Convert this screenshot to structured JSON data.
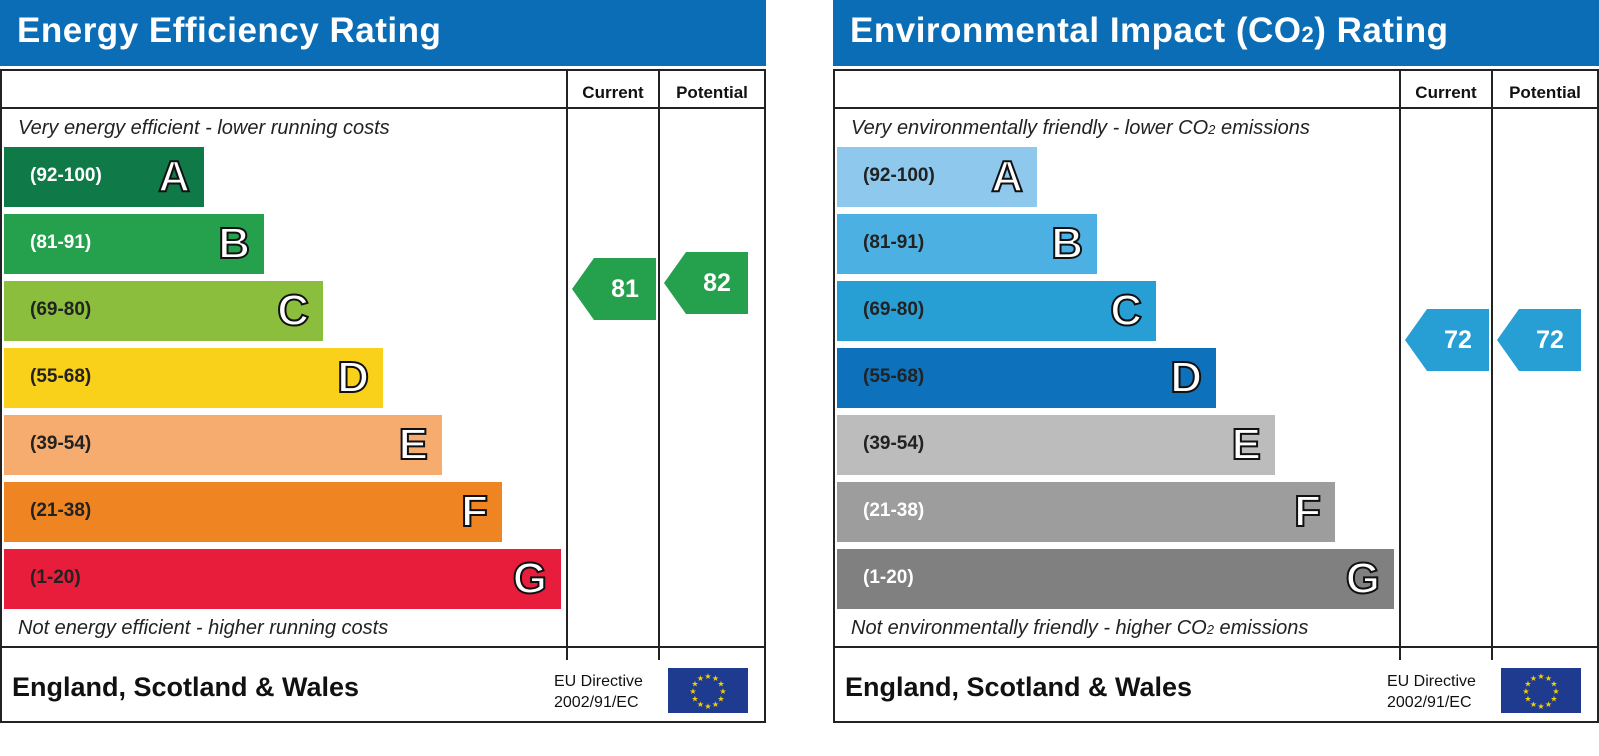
{
  "chart_data": [
    {
      "type": "bar",
      "title": "Energy Efficiency Rating",
      "column_headers": [
        "Current",
        "Potential"
      ],
      "top_note": "Very energy efficient - lower running costs",
      "bottom_note": "Not energy efficient - higher running costs",
      "bands": [
        {
          "range": "(92-100)",
          "letter": "A",
          "color": "#0f7a47",
          "text_color": "#ffffff"
        },
        {
          "range": "(81-91)",
          "letter": "B",
          "color": "#25a04c",
          "text_color": "#ffffff"
        },
        {
          "range": "(69-80)",
          "letter": "C",
          "color": "#8cbe3e",
          "text_color": "#222222"
        },
        {
          "range": "(55-68)",
          "letter": "D",
          "color": "#f9d01a",
          "text_color": "#222222"
        },
        {
          "range": "(39-54)",
          "letter": "E",
          "color": "#f6ab6f",
          "text_color": "#222222"
        },
        {
          "range": "(21-38)",
          "letter": "F",
          "color": "#ee8422",
          "text_color": "#222222"
        },
        {
          "range": "(1-20)",
          "letter": "G",
          "color": "#e71d3b",
          "text_color": "#222222"
        }
      ],
      "current": {
        "value": 81,
        "band": "B",
        "color": "#25a04c"
      },
      "potential": {
        "value": 82,
        "band": "B",
        "color": "#25a04c"
      },
      "footer": {
        "country": "England, Scotland & Wales",
        "directive_line1": "EU Directive",
        "directive_line2": "2002/91/EC"
      }
    },
    {
      "type": "bar",
      "title_prefix": "Environmental Impact (CO",
      "title_sub": "2",
      "title_suffix": ") Rating",
      "column_headers": [
        "Current",
        "Potential"
      ],
      "top_note_prefix": "Very environmentally friendly - lower CO",
      "top_note_sub": "2",
      "top_note_suffix": " emissions",
      "bottom_note_prefix": "Not environmentally friendly - higher CO",
      "bottom_note_sub": "2",
      "bottom_note_suffix": " emissions",
      "bands": [
        {
          "range": "(92-100)",
          "letter": "A",
          "color": "#8ec8ec",
          "text_color": "#222222"
        },
        {
          "range": "(81-91)",
          "letter": "B",
          "color": "#4db0e3",
          "text_color": "#222222"
        },
        {
          "range": "(69-80)",
          "letter": "C",
          "color": "#279fd5",
          "text_color": "#222222"
        },
        {
          "range": "(55-68)",
          "letter": "D",
          "color": "#0d72bb",
          "text_color": "#222222"
        },
        {
          "range": "(39-54)",
          "letter": "E",
          "color": "#bdbcbc",
          "text_color": "#222222"
        },
        {
          "range": "(21-38)",
          "letter": "F",
          "color": "#9d9d9d",
          "text_color": "#ffffff"
        },
        {
          "range": "(1-20)",
          "letter": "G",
          "color": "#808080",
          "text_color": "#ffffff"
        }
      ],
      "current": {
        "value": 72,
        "band": "C",
        "color": "#279fd5"
      },
      "potential": {
        "value": 72,
        "band": "C",
        "color": "#279fd5"
      },
      "footer": {
        "country": "England, Scotland & Wales",
        "directive_line1": "EU Directive",
        "directive_line2": "2002/91/EC"
      }
    }
  ]
}
